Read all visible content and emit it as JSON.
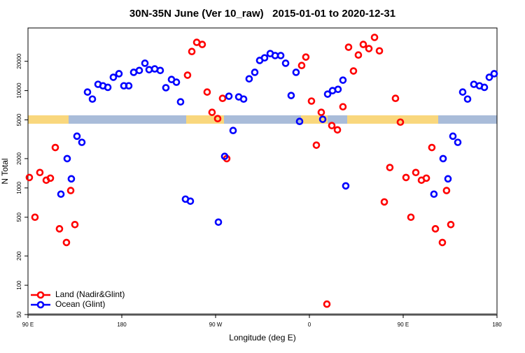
{
  "chart_data": {
    "type": "scatter",
    "title": "30N-35N June (Ver 10_raw)   2015-01-01 to 2020-12-31",
    "x_label": "Longitude (deg E)",
    "y_label": "N Total",
    "log_y": true,
    "legend": "lower left",
    "xlim": [
      90,
      540
    ],
    "xticks": [
      {
        "value": 90,
        "label": "90 E"
      },
      {
        "value": 180,
        "label": "180"
      },
      {
        "value": 270,
        "label": "90 W"
      },
      {
        "value": 360,
        "label": "0"
      },
      {
        "value": 450,
        "label": "90 E"
      },
      {
        "value": 540,
        "label": "180"
      }
    ],
    "ylim": [
      50,
      44000
    ],
    "yticks": [
      50,
      100,
      200,
      500,
      1000,
      2000,
      5000,
      10000,
      20000
    ],
    "series": [
      {
        "name": "Land (Nadir&Glint)",
        "color": "#ff0000",
        "x": [
          91.3,
          96.7,
          101.4,
          107.5,
          111.5,
          116.2,
          120.2,
          126.9,
          131.0,
          135.0,
          243.1,
          247.2,
          251.9,
          257.2,
          261.9,
          266.6,
          272.0,
          276.7,
          280.7,
          352.6,
          356.6,
          362.0,
          366.7,
          371.4,
          376.8,
          381.5,
          386.9,
          392.2,
          397.6,
          402.3,
          407.0,
          411.7,
          417.1,
          422.5,
          427.2,
          431.9,
          437.2,
          442.6,
          447.3,
          452.7,
          457.4,
          462.1,
          467.5,
          472.2,
          477.5,
          480.9,
          487.6,
          491.6,
          495.7
        ],
        "values": [
          1280,
          500,
          1440,
          1200,
          1260,
          2600,
          380,
          275,
          940,
          420,
          14400,
          25200,
          31300,
          29800,
          9660,
          5980,
          5150,
          8320,
          2000,
          18100,
          22100,
          7800,
          2750,
          5980,
          64,
          4370,
          3950,
          6820,
          27900,
          15900,
          23200,
          29800,
          27000,
          35200,
          25600,
          718,
          1620,
          8320,
          4740,
          1280,
          500,
          1440,
          1200,
          1260,
          2600,
          380,
          275,
          940,
          420
        ]
      },
      {
        "name": "Ocean (Glint)",
        "color": "#0000ff",
        "x": [
          121.6,
          127.6,
          131.6,
          137.0,
          141.7,
          147.1,
          151.8,
          157.2,
          161.9,
          166.6,
          171.9,
          177.3,
          182.0,
          186.7,
          191.4,
          196.8,
          202.2,
          206.2,
          211.6,
          216.9,
          222.3,
          227.7,
          232.4,
          236.4,
          241.1,
          245.8,
          272.7,
          278.7,
          282.8,
          286.8,
          292.2,
          296.9,
          302.2,
          307.6,
          312.3,
          317.0,
          322.4,
          327.1,
          332.5,
          337.2,
          342.5,
          347.2,
          350.6,
          372.8,
          377.5,
          382.2,
          387.5,
          392.2,
          394.9,
          479.5,
          488.3,
          493.0,
          497.7,
          502.4,
          507.1,
          511.8,
          517.8,
          523.2,
          527.9,
          532.6,
          537.3
        ],
        "values": [
          863,
          2000,
          1240,
          3400,
          2940,
          9660,
          8180,
          11600,
          11200,
          10800,
          13700,
          14900,
          11200,
          11200,
          15400,
          16100,
          19100,
          16400,
          16700,
          16100,
          10700,
          13000,
          12200,
          7660,
          767,
          731,
          445,
          2110,
          8750,
          3890,
          8610,
          8180,
          13200,
          15400,
          20400,
          21700,
          24000,
          22900,
          22900,
          19100,
          8900,
          15400,
          4820,
          5070,
          9200,
          9980,
          10300,
          12800,
          1050,
          863,
          2000,
          1240,
          3400,
          2940,
          9660,
          8180,
          11600,
          11200,
          10800,
          13700,
          14900
        ]
      }
    ]
  }
}
